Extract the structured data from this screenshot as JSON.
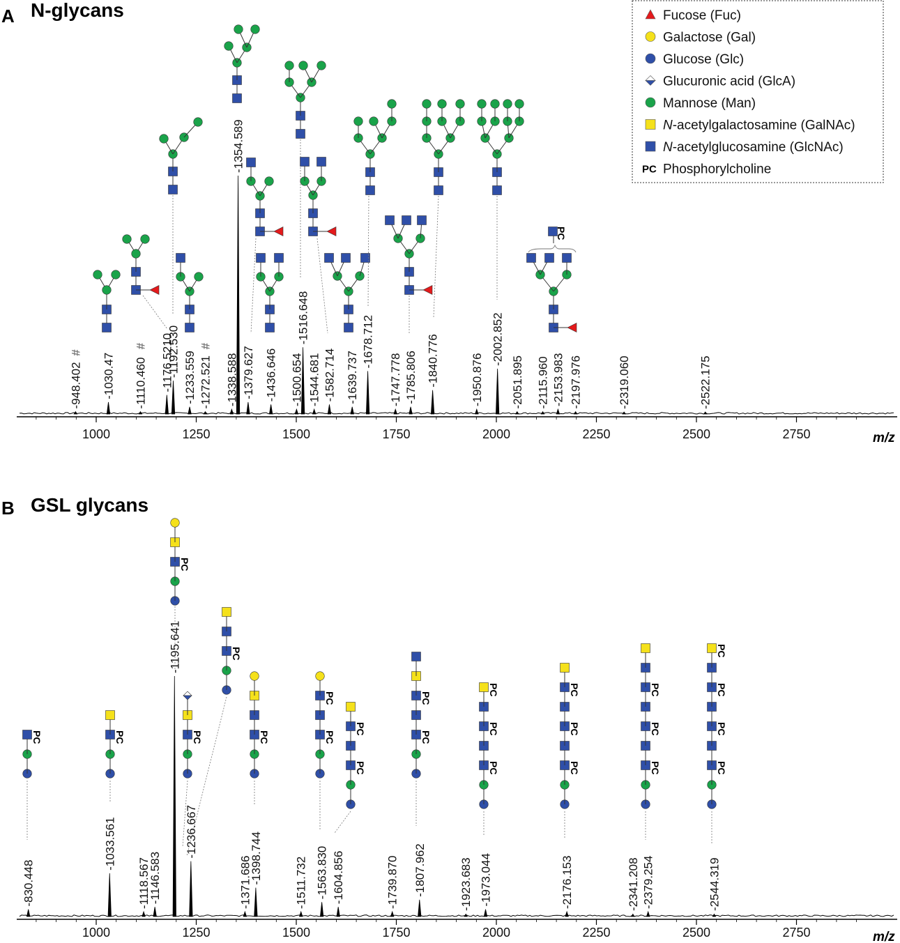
{
  "chart_data": [
    {
      "type": "line",
      "panel_letter": "A",
      "title": "N-glycans",
      "xlabel": "m/z",
      "ylabel": "",
      "xlim": [
        800,
        2900
      ],
      "x_ticks": [
        "1000",
        "1250",
        "1500",
        "1750",
        "2000",
        "2250",
        "2500",
        "2750"
      ],
      "peaks": [
        {
          "mz": 948.402,
          "label": "948.402",
          "intensity": 0.01,
          "hash": "#"
        },
        {
          "mz": 1030.47,
          "label": "1030.47",
          "intensity": 0.05
        },
        {
          "mz": 1110.46,
          "label": "1110.460",
          "intensity": 0.01,
          "hash": "#"
        },
        {
          "mz": 1176.521,
          "label": "1176.5210",
          "intensity": 0.08
        },
        {
          "mz": 1192.53,
          "label": "1192.530",
          "intensity": 0.14
        },
        {
          "mz": 1233.559,
          "label": "1233.559",
          "intensity": 0.03
        },
        {
          "mz": 1272.521,
          "label": "1272.521",
          "intensity": 0.01,
          "hash": "#"
        },
        {
          "mz": 1338.588,
          "label": "1338.588",
          "intensity": 0.02
        },
        {
          "mz": 1354.589,
          "label": "1354.589",
          "intensity": 1.0
        },
        {
          "mz": 1379.627,
          "label": "1379.627",
          "intensity": 0.05
        },
        {
          "mz": 1436.646,
          "label": "1436.646",
          "intensity": 0.04
        },
        {
          "mz": 1500.654,
          "label": "1500.654",
          "intensity": 0.02
        },
        {
          "mz": 1516.648,
          "label": "1516.648",
          "intensity": 0.28
        },
        {
          "mz": 1544.681,
          "label": "1544.681",
          "intensity": 0.02
        },
        {
          "mz": 1582.714,
          "label": "1582.714",
          "intensity": 0.04
        },
        {
          "mz": 1639.737,
          "label": "1639.737",
          "intensity": 0.03
        },
        {
          "mz": 1678.712,
          "label": "1678.712",
          "intensity": 0.18
        },
        {
          "mz": 1747.778,
          "label": "1747.778",
          "intensity": 0.02
        },
        {
          "mz": 1785.806,
          "label": "1785.806",
          "intensity": 0.03
        },
        {
          "mz": 1840.776,
          "label": "1840.776",
          "intensity": 0.1
        },
        {
          "mz": 1950.876,
          "label": "1950.876",
          "intensity": 0.02
        },
        {
          "mz": 2002.852,
          "label": "2002.852",
          "intensity": 0.19
        },
        {
          "mz": 2051.895,
          "label": "2051.895",
          "intensity": 0.01
        },
        {
          "mz": 2115.96,
          "label": "2115.960",
          "intensity": 0.01
        },
        {
          "mz": 2153.983,
          "label": "2153.983",
          "intensity": 0.02
        },
        {
          "mz": 2197.976,
          "label": "2197.976",
          "intensity": 0.01
        },
        {
          "mz": 2319.06,
          "label": "2319.060",
          "intensity": 0.005
        },
        {
          "mz": 2522.175,
          "label": "2522.175",
          "intensity": 0.005
        }
      ]
    },
    {
      "type": "line",
      "panel_letter": "B",
      "title": "GSL glycans",
      "xlabel": "m/z",
      "ylabel": "",
      "xlim": [
        800,
        2900
      ],
      "x_ticks": [
        "1000",
        "1250",
        "1500",
        "1750",
        "2000",
        "2250",
        "2500",
        "2750"
      ],
      "peaks": [
        {
          "mz": 830.448,
          "label": "830.448",
          "intensity": 0.03
        },
        {
          "mz": 1033.561,
          "label": "1033.561",
          "intensity": 0.18
        },
        {
          "mz": 1118.567,
          "label": "1118.567",
          "intensity": 0.02
        },
        {
          "mz": 1146.583,
          "label": "1146.583",
          "intensity": 0.04
        },
        {
          "mz": 1195.641,
          "label": "1195.641",
          "intensity": 1.0
        },
        {
          "mz": 1236.667,
          "label": "1236.667",
          "intensity": 0.23
        },
        {
          "mz": 1371.686,
          "label": "1371.686",
          "intensity": 0.02
        },
        {
          "mz": 1398.744,
          "label": "1398.744",
          "intensity": 0.12
        },
        {
          "mz": 1511.732,
          "label": "1511.732",
          "intensity": 0.02
        },
        {
          "mz": 1563.83,
          "label": "1563.830",
          "intensity": 0.06
        },
        {
          "mz": 1604.856,
          "label": "1604.856",
          "intensity": 0.04
        },
        {
          "mz": 1739.87,
          "label": "1739.870",
          "intensity": 0.02
        },
        {
          "mz": 1807.962,
          "label": "1807.962",
          "intensity": 0.07
        },
        {
          "mz": 1923.683,
          "label": "1923.683",
          "intensity": 0.01
        },
        {
          "mz": 1973.044,
          "label": "1973.044",
          "intensity": 0.03
        },
        {
          "mz": 2176.153,
          "label": "2176.153",
          "intensity": 0.02
        },
        {
          "mz": 2341.208,
          "label": "2341.208",
          "intensity": 0.01
        },
        {
          "mz": 2379.254,
          "label": "2379.254",
          "intensity": 0.02
        },
        {
          "mz": 2544.319,
          "label": "2544.319",
          "intensity": 0.01
        }
      ]
    }
  ],
  "legend": {
    "items": [
      {
        "symbol": "triangle",
        "color": "#e41a1c",
        "prefix": "",
        "italic": "",
        "text": "Fucose (Fuc)"
      },
      {
        "symbol": "circle",
        "color": "#f5e11b",
        "prefix": "",
        "italic": "",
        "text": "Galactose (Gal)"
      },
      {
        "symbol": "circle",
        "color": "#2f4fa8",
        "prefix": "",
        "italic": "",
        "text": "Glucose (Glc)"
      },
      {
        "symbol": "diamond",
        "color": "#2f4fa8",
        "prefix": "",
        "italic": "",
        "text": "Glucuronic acid (GlcA)"
      },
      {
        "symbol": "circle",
        "color": "#1aa34a",
        "prefix": "",
        "italic": "",
        "text": "Mannose (Man)"
      },
      {
        "symbol": "square",
        "color": "#f5e11b",
        "prefix": "",
        "italic": "N",
        "text": "-acetylgalactosamine (GalNAc)"
      },
      {
        "symbol": "square",
        "color": "#2f4fa8",
        "prefix": "",
        "italic": "N",
        "text": "-acetylglucosamine (GlcNAc)"
      },
      {
        "symbol": "pc",
        "color": "#000000",
        "prefix": "PC",
        "italic": "",
        "text": "Phosphorylcholine"
      }
    ]
  },
  "colors": {
    "fucose": "#e41a1c",
    "galactose": "#f5e11b",
    "glcnac": "#2f4fa8",
    "mannose": "#1aa34a",
    "pc_tag": "PC"
  }
}
